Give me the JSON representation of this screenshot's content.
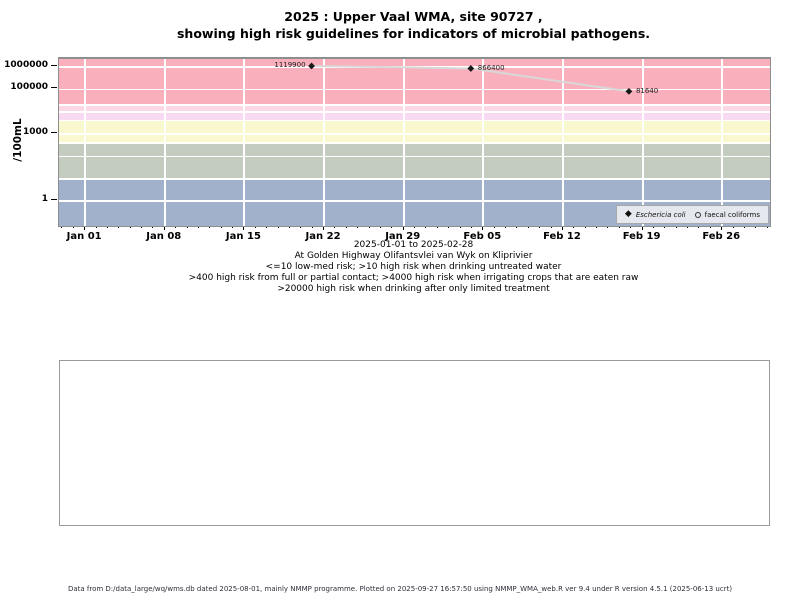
{
  "title": {
    "line1": "2025 : Upper Vaal WMA, site 90727 ,",
    "line2": "showing high risk guidelines for indicators of microbial pathogens."
  },
  "chart_data": {
    "type": "scatter",
    "title": "2025 : Upper Vaal WMA, site 90727 , showing high risk guidelines for indicators of microbial pathogens.",
    "ylabel": "/100mL",
    "x_axis": {
      "epoch": "2025-01-01",
      "domain_days": [
        -2.3,
        60.2
      ],
      "major_ticks": [
        {
          "day": 0,
          "label": "Jan 01"
        },
        {
          "day": 7,
          "label": "Jan 08"
        },
        {
          "day": 14,
          "label": "Jan 15"
        },
        {
          "day": 21,
          "label": "Jan 22"
        },
        {
          "day": 28,
          "label": "Jan 29"
        },
        {
          "day": 35,
          "label": "Feb 05"
        },
        {
          "day": 42,
          "label": "Feb 12"
        },
        {
          "day": 49,
          "label": "Feb 19"
        },
        {
          "day": 56,
          "label": "Feb 26"
        }
      ],
      "minor_tick_day_range": [
        -2,
        60
      ],
      "minor_tick_every_days": 1
    },
    "y_axis": {
      "scale": "log10",
      "log_domain": [
        -1.11,
        6.36
      ],
      "ticks": [
        {
          "value": 1000000,
          "label": "1000000"
        },
        {
          "value": 100000,
          "label": "100000"
        },
        {
          "value": 1000,
          "label": "1000"
        },
        {
          "value": 1,
          "label": "1"
        }
      ],
      "gridline_values": [
        1,
        10,
        100,
        1000,
        10000,
        100000,
        1000000,
        400,
        4000,
        20000
      ]
    },
    "bands": [
      {
        "name": "high-risk-drink-limited-treatment",
        "range": [
          20000,
          2300000
        ],
        "color": "#faafbd"
      },
      {
        "name": "upper-transition-band",
        "range": [
          10000,
          20000
        ],
        "color": "#fcd8e6"
      },
      {
        "name": "high-risk-irrigation",
        "range": [
          4000,
          10000
        ],
        "color": "#f8dbf3"
      },
      {
        "name": "high-risk-contact",
        "range": [
          400,
          4000
        ],
        "color": "#faf8ce"
      },
      {
        "name": "high-risk-drink-untreated",
        "range": [
          10,
          400
        ],
        "color": "#c3ccbf"
      },
      {
        "name": "low-med-risk",
        "range": [
          0.078,
          10
        ],
        "color": "#a1b1cb"
      }
    ],
    "series": [
      {
        "name": "Eschericia coli",
        "marker": "filled-diamond",
        "marker_color": "#1a1a1a",
        "points": [
          {
            "date": "2025-01-21",
            "day": 19.9,
            "value": 1119900,
            "label": "1119900",
            "label_side": "left"
          },
          {
            "date": "2025-02-04",
            "day": 33.9,
            "value": 866400,
            "label": "866400",
            "label_side": "right"
          },
          {
            "date": "2025-02-18",
            "day": 47.8,
            "value": 81640,
            "label": "81640",
            "label_side": "right"
          }
        ]
      },
      {
        "name": "faecal coliforms",
        "marker": "open-circle",
        "marker_color": "#1a1a1a",
        "points": []
      }
    ],
    "connector_color": "#d8d8d8",
    "gridline_color": "#ffffff",
    "legend_position": "bottom-right-inside"
  },
  "legend": {
    "items": [
      {
        "symbol": "filled-diamond",
        "label": "Eschericia coli",
        "italic": true
      },
      {
        "symbol": "open-circle",
        "label": "faecal coliforms",
        "italic": false
      }
    ]
  },
  "captions": {
    "range": "2025-01-01 to 2025-02-28",
    "site": "At Golden Highway Olifantsvlei van Wyk on Kliprivier",
    "guideline1": "<=10 low-med risk; >10 high risk when drinking untreated water",
    "guideline2": ">400 high risk from full or partial contact; >4000 high risk when irrigating crops that are eaten raw",
    "guideline3": ">20000 high risk when drinking after only limited treatment"
  },
  "footer": {
    "text": "Data from D:/data_large/wq/wms.db dated 2025-08-01, mainly NMMP programme. Plotted on 2025-09-27 16:57:50 using NMMP_WMA_web.R ver 9.4 under R version 4.5.1 (2025-06-13 ucrt)"
  }
}
